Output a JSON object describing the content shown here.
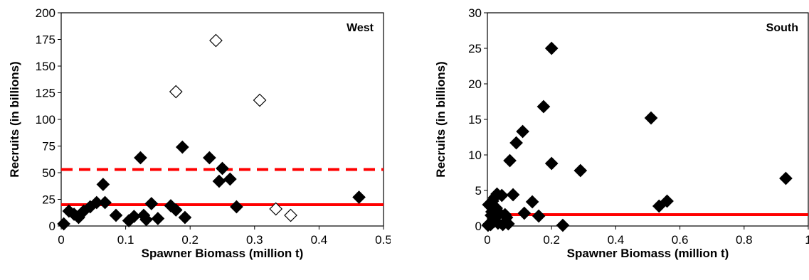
{
  "chart_data": [
    {
      "type": "scatter",
      "title": "West",
      "xlabel": "Spawner Biomass (million t)",
      "ylabel": "Recruits (in billions)",
      "xlim": [
        0,
        0.5
      ],
      "ylim": [
        0,
        200
      ],
      "xticks": [
        "0",
        "0.1",
        "0.2",
        "0.3",
        "0.4",
        "0.5"
      ],
      "yticks": [
        "0",
        "25",
        "50",
        "75",
        "100",
        "125",
        "150",
        "175",
        "200"
      ],
      "xtick_values": [
        0,
        0.1,
        0.2,
        0.3,
        0.4,
        0.5
      ],
      "ytick_values": [
        0,
        25,
        50,
        75,
        100,
        125,
        150,
        175,
        200
      ],
      "series": [
        {
          "marker": "filled-diamond",
          "color": "#000000",
          "points": [
            [
              0.004,
              2
            ],
            [
              0.012,
              14
            ],
            [
              0.02,
              11
            ],
            [
              0.027,
              8
            ],
            [
              0.035,
              14
            ],
            [
              0.045,
              18
            ],
            [
              0.055,
              22
            ],
            [
              0.065,
              39
            ],
            [
              0.068,
              22
            ],
            [
              0.085,
              10
            ],
            [
              0.105,
              5
            ],
            [
              0.113,
              9
            ],
            [
              0.123,
              64
            ],
            [
              0.128,
              10
            ],
            [
              0.132,
              6
            ],
            [
              0.14,
              21
            ],
            [
              0.15,
              7
            ],
            [
              0.17,
              19
            ],
            [
              0.178,
              15
            ],
            [
              0.188,
              74
            ],
            [
              0.192,
              8
            ],
            [
              0.23,
              64
            ],
            [
              0.245,
              42
            ],
            [
              0.25,
              54
            ],
            [
              0.262,
              44
            ],
            [
              0.272,
              18
            ],
            [
              0.462,
              27
            ]
          ]
        },
        {
          "marker": "open-diamond",
          "color": "#000000",
          "points": [
            [
              0.178,
              126
            ],
            [
              0.24,
              174
            ],
            [
              0.308,
              118
            ],
            [
              0.333,
              16
            ],
            [
              0.356,
              10
            ]
          ]
        }
      ],
      "reference_lines": [
        {
          "style": "dashed",
          "color": "#ff0000",
          "y": 53
        },
        {
          "style": "solid",
          "color": "#ff0000",
          "y": 20
        }
      ],
      "grid": false,
      "legend": "none"
    },
    {
      "type": "scatter",
      "title": "South",
      "xlabel": "Spawner Biomass (million t)",
      "ylabel": "Recruits (in billions)",
      "xlim": [
        0,
        1
      ],
      "ylim": [
        0,
        30
      ],
      "xticks": [
        "0",
        "0.2",
        "0.4",
        "0.6",
        "0.8",
        "1"
      ],
      "yticks": [
        "0",
        "5",
        "10",
        "15",
        "20",
        "25",
        "30"
      ],
      "xtick_values": [
        0,
        0.2,
        0.4,
        0.6,
        0.8,
        1
      ],
      "ytick_values": [
        0,
        5,
        10,
        15,
        20,
        25,
        30
      ],
      "series": [
        {
          "marker": "filled-diamond",
          "color": "#000000",
          "points": [
            [
              0.002,
              0.1
            ],
            [
              0.004,
              3.0
            ],
            [
              0.006,
              0.3
            ],
            [
              0.01,
              0.2
            ],
            [
              0.012,
              1.5
            ],
            [
              0.014,
              2.0
            ],
            [
              0.016,
              3.5
            ],
            [
              0.018,
              2.8
            ],
            [
              0.02,
              0.6
            ],
            [
              0.022,
              4.0
            ],
            [
              0.025,
              1.2
            ],
            [
              0.028,
              2.5
            ],
            [
              0.03,
              4.5
            ],
            [
              0.033,
              0.4
            ],
            [
              0.038,
              1.8
            ],
            [
              0.045,
              4.3
            ],
            [
              0.048,
              0.2
            ],
            [
              0.055,
              1.6
            ],
            [
              0.06,
              1.2
            ],
            [
              0.065,
              0.3
            ],
            [
              0.07,
              9.2
            ],
            [
              0.08,
              4.4
            ],
            [
              0.09,
              11.7
            ],
            [
              0.11,
              13.3
            ],
            [
              0.115,
              1.8
            ],
            [
              0.14,
              3.4
            ],
            [
              0.16,
              1.4
            ],
            [
              0.175,
              16.8
            ],
            [
              0.2,
              25.0
            ],
            [
              0.2,
              8.8
            ],
            [
              0.235,
              0.1
            ],
            [
              0.29,
              7.8
            ],
            [
              0.51,
              15.2
            ],
            [
              0.535,
              2.8
            ],
            [
              0.56,
              3.5
            ],
            [
              0.93,
              6.7
            ]
          ]
        }
      ],
      "reference_lines": [
        {
          "style": "solid",
          "color": "#ff0000",
          "y": 1.6
        }
      ],
      "grid": false,
      "legend": "none"
    }
  ]
}
